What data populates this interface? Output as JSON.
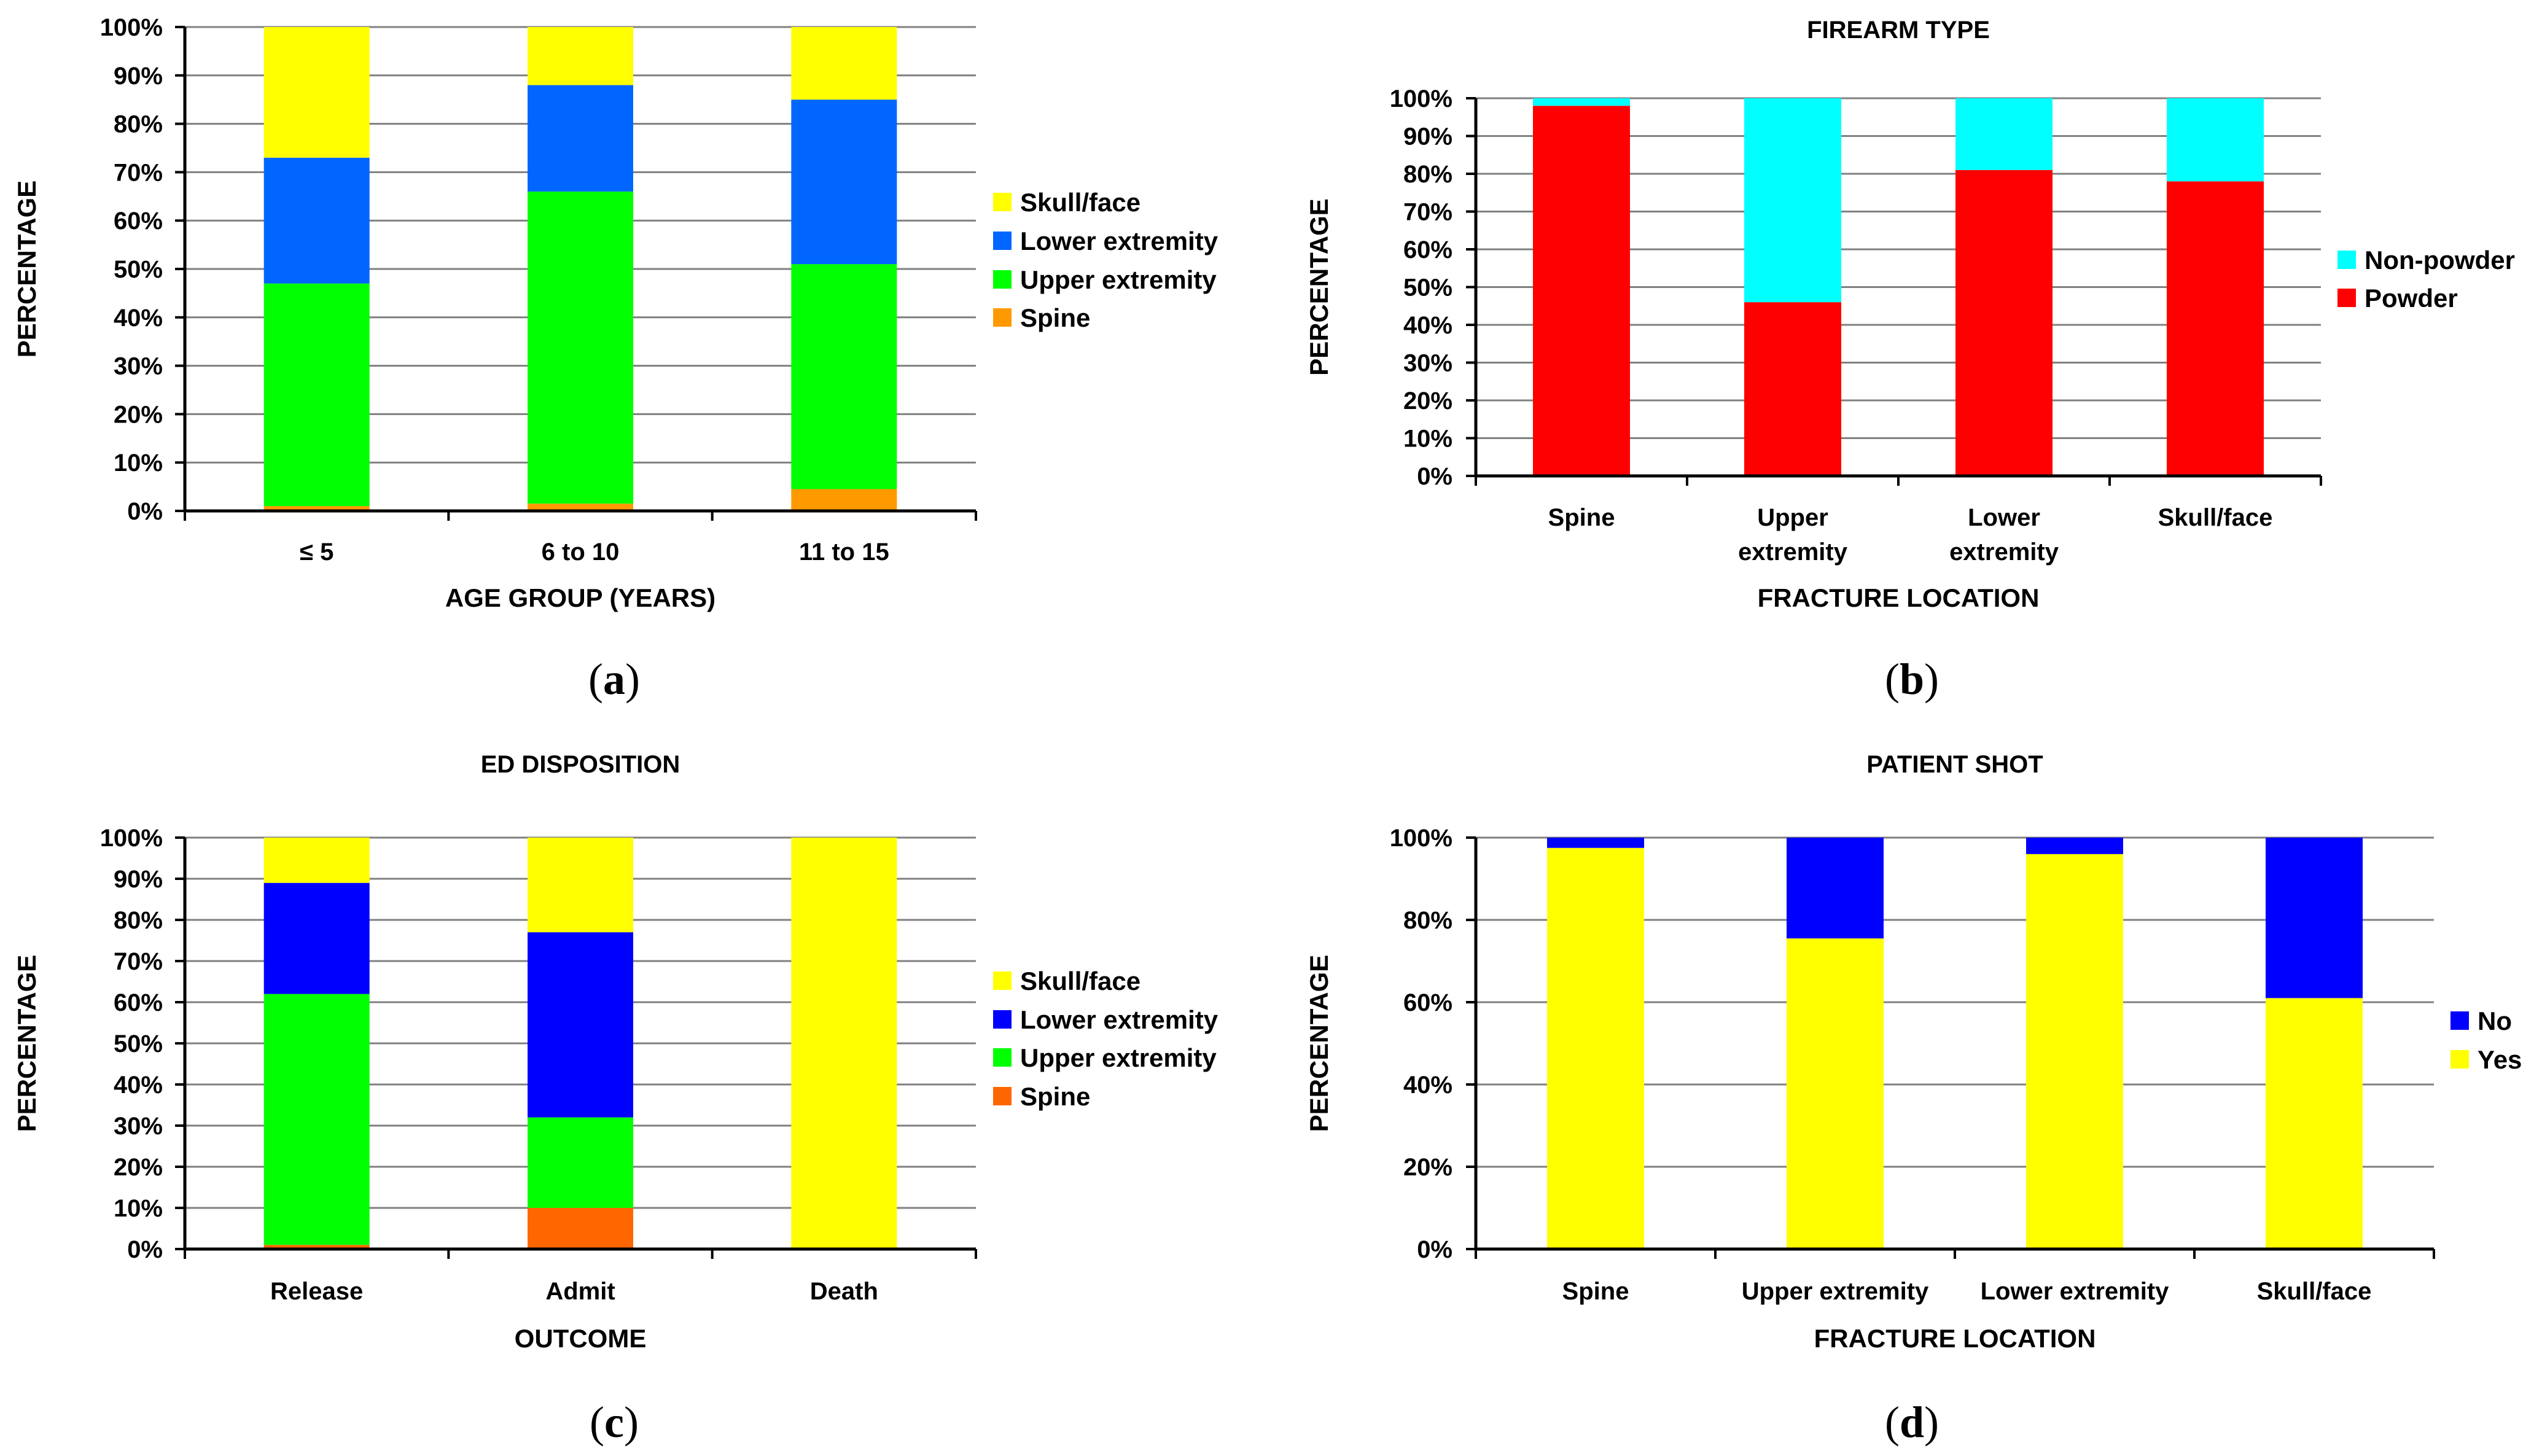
{
  "colors": {
    "skull_face": "#ffff00",
    "lower_extremity_a": "#0066ff",
    "lower_extremity_c": "#0000ff",
    "upper_extremity": "#00ff00",
    "spine_a": "#ff9900",
    "spine_c": "#ff6600",
    "non_powder": "#00ffff",
    "powder": "#ff0000",
    "no": "#0000ff",
    "yes": "#ffff00",
    "grid": "#808080",
    "axis": "#000000"
  },
  "chart_data": [
    {
      "id": "a",
      "type": "bar",
      "stacked": true,
      "caption": "a",
      "title": "",
      "xlabel": "AGE GROUP (YEARS)",
      "ylabel": "PERCENTAGE",
      "ylim": [
        0,
        100
      ],
      "yticks": [
        "0%",
        "10%",
        "20%",
        "30%",
        "40%",
        "50%",
        "60%",
        "70%",
        "80%",
        "90%",
        "100%"
      ],
      "categories": [
        "≤ 5",
        "6 to 10",
        "11 to 15"
      ],
      "series": [
        {
          "name": "Spine",
          "color_key": "spine_a",
          "values": [
            1,
            1.5,
            4.5
          ]
        },
        {
          "name": "Upper extremity",
          "color_key": "upper_extremity",
          "values": [
            46,
            64.5,
            46.5
          ]
        },
        {
          "name": "Lower extremity",
          "color_key": "lower_extremity_a",
          "values": [
            26,
            22,
            34
          ]
        },
        {
          "name": "Skull/face",
          "color_key": "skull_face",
          "values": [
            27,
            12,
            15
          ]
        }
      ],
      "legend_position": "right"
    },
    {
      "id": "b",
      "type": "bar",
      "stacked": true,
      "caption": "b",
      "title": "FIREARM TYPE",
      "xlabel": "FRACTURE LOCATION",
      "ylabel": "PERCENTAGE",
      "ylim": [
        0,
        100
      ],
      "yticks": [
        "0%",
        "10%",
        "20%",
        "30%",
        "40%",
        "50%",
        "60%",
        "70%",
        "80%",
        "90%",
        "100%"
      ],
      "categories": [
        [
          "Spine"
        ],
        [
          "Upper",
          "extremity"
        ],
        [
          "Lower",
          "extremity"
        ],
        [
          "Skull/face"
        ]
      ],
      "series": [
        {
          "name": "Powder",
          "color_key": "powder",
          "values": [
            98,
            46,
            81,
            78
          ]
        },
        {
          "name": "Non-powder",
          "color_key": "non_powder",
          "values": [
            2,
            54,
            19,
            22
          ]
        }
      ],
      "legend_position": "right"
    },
    {
      "id": "c",
      "type": "bar",
      "stacked": true,
      "caption": "c",
      "title": "ED DISPOSITION",
      "xlabel": "OUTCOME",
      "ylabel": "PERCENTAGE",
      "ylim": [
        0,
        100
      ],
      "yticks": [
        "0%",
        "10%",
        "20%",
        "30%",
        "40%",
        "50%",
        "60%",
        "70%",
        "80%",
        "90%",
        "100%"
      ],
      "categories": [
        "Release",
        "Admit",
        "Death"
      ],
      "series": [
        {
          "name": "Spine",
          "color_key": "spine_c",
          "values": [
            1,
            10,
            0
          ]
        },
        {
          "name": "Upper extremity",
          "color_key": "upper_extremity",
          "values": [
            61,
            22,
            0
          ]
        },
        {
          "name": "Lower extremity",
          "color_key": "lower_extremity_c",
          "values": [
            27,
            45,
            0
          ]
        },
        {
          "name": "Skull/face",
          "color_key": "skull_face",
          "values": [
            11,
            23,
            100
          ]
        }
      ],
      "legend_position": "right"
    },
    {
      "id": "d",
      "type": "bar",
      "stacked": true,
      "caption": "d",
      "title": "PATIENT SHOT",
      "xlabel": "FRACTURE LOCATION",
      "ylabel": "PERCENTAGE",
      "ylim": [
        0,
        100
      ],
      "yticks": [
        "0%",
        "20%",
        "40%",
        "60%",
        "80%",
        "100%"
      ],
      "categories": [
        "Spine",
        "Upper extremity",
        "Lower extremity",
        "Skull/face"
      ],
      "series": [
        {
          "name": "Yes",
          "color_key": "yes",
          "values": [
            97.5,
            75.5,
            96,
            61
          ]
        },
        {
          "name": "No",
          "color_key": "no",
          "values": [
            2.5,
            24.5,
            4,
            39
          ]
        }
      ],
      "legend_position": "right"
    }
  ]
}
